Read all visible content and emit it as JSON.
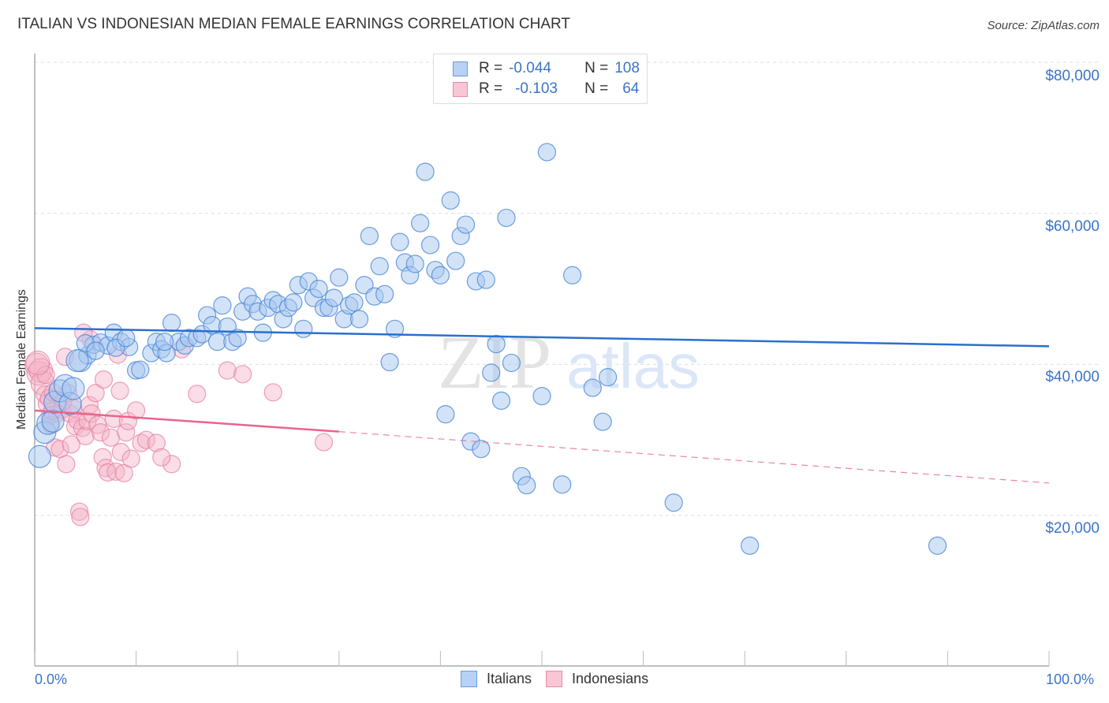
{
  "header": {
    "title": "ITALIAN VS INDONESIAN MEDIAN FEMALE EARNINGS CORRELATION CHART",
    "source": "Source: ZipAtlas.com"
  },
  "legend_top": {
    "rows": [
      {
        "series": "Italians",
        "r_label": "R =",
        "r_value": "-0.044",
        "n_label": "N =",
        "n_value": "108",
        "color": "#a8c8f0",
        "border": "#5b8fd9"
      },
      {
        "series": "Indonesians",
        "r_label": "R =",
        "r_value": "-0.103",
        "n_label": "N =",
        "n_value": "64",
        "color": "#f8bfd0",
        "border": "#e87fa0"
      }
    ]
  },
  "legend_bottom": {
    "items": [
      {
        "label": "Italians",
        "color": "#a8c8f0",
        "border": "#5b8fd9"
      },
      {
        "label": "Indonesians",
        "color": "#f8bfd0",
        "border": "#e87fa0"
      }
    ]
  },
  "axes": {
    "y_label": "Median Female Earnings",
    "y_ticks": [
      "$80,000",
      "$60,000",
      "$40,000",
      "$20,000"
    ],
    "x_ticks": [
      "0.0%",
      "100.0%"
    ]
  },
  "watermark": {
    "zip": "ZIP",
    "atlas": "atlas"
  },
  "colors": {
    "italians_fill": "#a8c8f0",
    "italians_stroke": "#4a86d8",
    "italians_line": "#2a6fcf",
    "indonesians_fill": "#f5b3c7",
    "indonesians_stroke": "#e57a9c",
    "indonesians_line": "#e8648d",
    "tick_label": "#3b74c9"
  },
  "chart_data": {
    "type": "scatter",
    "title": "ITALIAN VS INDONESIAN MEDIAN FEMALE EARNINGS CORRELATION CHART",
    "xlabel": "",
    "ylabel": "Median Female Earnings",
    "xlim": [
      0,
      100
    ],
    "ylim": [
      0,
      80000
    ],
    "x_unit": "%",
    "grid": true,
    "legend_position": "top-center",
    "series": [
      {
        "name": "Italians",
        "r": -0.044,
        "n": 108,
        "trend": {
          "x": [
            0,
            100
          ],
          "y": [
            44800,
            42400
          ]
        },
        "points": [
          [
            0.5,
            27800
          ],
          [
            1.0,
            31000
          ],
          [
            1.3,
            32200
          ],
          [
            1.8,
            32500
          ],
          [
            2.0,
            35000
          ],
          [
            2.5,
            36500
          ],
          [
            3.0,
            37200
          ],
          [
            3.5,
            34800
          ],
          [
            4.5,
            40500
          ],
          [
            5.2,
            41200
          ],
          [
            5.8,
            42600
          ],
          [
            6.5,
            42900
          ],
          [
            7.2,
            42500
          ],
          [
            7.8,
            44200
          ],
          [
            8.5,
            43000
          ],
          [
            9.3,
            42300
          ],
          [
            10.0,
            39200
          ],
          [
            10.4,
            39300
          ],
          [
            11.5,
            41500
          ],
          [
            12.0,
            43000
          ],
          [
            12.5,
            42000
          ],
          [
            13.0,
            41500
          ],
          [
            13.5,
            45500
          ],
          [
            14.2,
            43000
          ],
          [
            14.8,
            42500
          ],
          [
            15.2,
            43500
          ],
          [
            16.0,
            43500
          ],
          [
            16.5,
            44000
          ],
          [
            17.0,
            46500
          ],
          [
            17.5,
            45200
          ],
          [
            18.0,
            43000
          ],
          [
            18.5,
            47800
          ],
          [
            19.0,
            45000
          ],
          [
            19.5,
            43000
          ],
          [
            20.0,
            43500
          ],
          [
            20.5,
            47000
          ],
          [
            21.0,
            49000
          ],
          [
            21.5,
            48000
          ],
          [
            22.0,
            47000
          ],
          [
            22.5,
            44200
          ],
          [
            23.0,
            47500
          ],
          [
            23.5,
            48500
          ],
          [
            24.0,
            48000
          ],
          [
            24.5,
            46000
          ],
          [
            25.0,
            47500
          ],
          [
            25.5,
            48200
          ],
          [
            26.0,
            50500
          ],
          [
            26.5,
            44700
          ],
          [
            27.0,
            51000
          ],
          [
            27.5,
            48800
          ],
          [
            28.0,
            50000
          ],
          [
            28.5,
            47500
          ],
          [
            29.0,
            47500
          ],
          [
            29.5,
            48800
          ],
          [
            30.0,
            51500
          ],
          [
            30.5,
            46000
          ],
          [
            31.0,
            47800
          ],
          [
            31.5,
            48200
          ],
          [
            32.0,
            46000
          ],
          [
            32.5,
            50500
          ],
          [
            33.0,
            57000
          ],
          [
            33.5,
            49000
          ],
          [
            34.0,
            53000
          ],
          [
            34.5,
            49300
          ],
          [
            35.0,
            40300
          ],
          [
            35.5,
            44700
          ],
          [
            36.0,
            56200
          ],
          [
            36.5,
            53500
          ],
          [
            37.0,
            51800
          ],
          [
            37.5,
            53300
          ],
          [
            38.0,
            58700
          ],
          [
            38.5,
            65500
          ],
          [
            39.0,
            55800
          ],
          [
            39.5,
            52500
          ],
          [
            40.0,
            51800
          ],
          [
            40.5,
            33400
          ],
          [
            41.0,
            61700
          ],
          [
            41.5,
            53700
          ],
          [
            42.0,
            57000
          ],
          [
            42.5,
            58500
          ],
          [
            43.0,
            29800
          ],
          [
            43.5,
            51000
          ],
          [
            44.0,
            28800
          ],
          [
            44.5,
            51200
          ],
          [
            45.0,
            38900
          ],
          [
            45.5,
            42700
          ],
          [
            46.0,
            35200
          ],
          [
            46.5,
            59400
          ],
          [
            47.0,
            40200
          ],
          [
            48.0,
            25200
          ],
          [
            48.5,
            24000
          ],
          [
            50.0,
            35800
          ],
          [
            50.5,
            68100
          ],
          [
            52.0,
            24100
          ],
          [
            53.0,
            51800
          ],
          [
            55.0,
            36900
          ],
          [
            56.0,
            32400
          ],
          [
            56.5,
            38300
          ],
          [
            63.0,
            21700
          ],
          [
            70.5,
            16000
          ],
          [
            89.0,
            16000
          ],
          [
            3.8,
            36800
          ],
          [
            4.2,
            40500
          ],
          [
            5.0,
            42800
          ],
          [
            6.0,
            41800
          ],
          [
            8.0,
            42200
          ],
          [
            9.0,
            43500
          ],
          [
            12.8,
            43000
          ]
        ]
      },
      {
        "name": "Indonesians",
        "r": -0.103,
        "n": 64,
        "trend": {
          "x": [
            0,
            30
          ],
          "y": [
            33900,
            31100
          ],
          "dashed_extension": {
            "x": [
              30,
              100
            ],
            "y": [
              31100,
              24300
            ]
          }
        },
        "points": [
          [
            0.2,
            39900
          ],
          [
            0.4,
            38800
          ],
          [
            0.6,
            39200
          ],
          [
            0.8,
            37500
          ],
          [
            1.0,
            36000
          ],
          [
            1.2,
            34800
          ],
          [
            1.4,
            35500
          ],
          [
            1.5,
            33200
          ],
          [
            1.6,
            32000
          ],
          [
            1.8,
            36300
          ],
          [
            2.0,
            29000
          ],
          [
            2.2,
            33500
          ],
          [
            2.5,
            28800
          ],
          [
            2.7,
            34000
          ],
          [
            3.0,
            41000
          ],
          [
            3.1,
            26800
          ],
          [
            3.3,
            36200
          ],
          [
            3.5,
            33500
          ],
          [
            3.8,
            34200
          ],
          [
            4.0,
            31800
          ],
          [
            4.2,
            32600
          ],
          [
            4.4,
            20500
          ],
          [
            4.5,
            19800
          ],
          [
            4.7,
            31600
          ],
          [
            5.0,
            30500
          ],
          [
            5.2,
            32500
          ],
          [
            5.4,
            34600
          ],
          [
            5.5,
            43300
          ],
          [
            5.6,
            33500
          ],
          [
            6.0,
            36200
          ],
          [
            6.2,
            32000
          ],
          [
            6.5,
            31000
          ],
          [
            6.7,
            27700
          ],
          [
            7.0,
            26300
          ],
          [
            7.2,
            25700
          ],
          [
            7.5,
            30300
          ],
          [
            7.8,
            32800
          ],
          [
            8.0,
            25800
          ],
          [
            8.2,
            41300
          ],
          [
            8.5,
            28400
          ],
          [
            8.8,
            25600
          ],
          [
            9.0,
            31000
          ],
          [
            9.2,
            32500
          ],
          [
            9.5,
            27500
          ],
          [
            10.0,
            33900
          ],
          [
            10.5,
            29600
          ],
          [
            11.0,
            30000
          ],
          [
            12.0,
            29600
          ],
          [
            13.5,
            26800
          ],
          [
            14.5,
            42000
          ],
          [
            16.0,
            36100
          ],
          [
            19.0,
            39200
          ],
          [
            20.5,
            38700
          ],
          [
            23.5,
            36300
          ],
          [
            28.5,
            29700
          ],
          [
            1.1,
            38600
          ],
          [
            2.8,
            35100
          ],
          [
            4.8,
            44200
          ],
          [
            6.8,
            38000
          ],
          [
            8.4,
            36500
          ],
          [
            0.3,
            40200
          ],
          [
            1.7,
            33800
          ],
          [
            3.6,
            29400
          ],
          [
            12.5,
            27700
          ]
        ]
      }
    ]
  }
}
